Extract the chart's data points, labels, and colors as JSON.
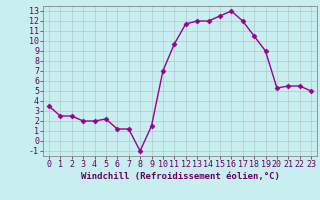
{
  "x": [
    0,
    1,
    2,
    3,
    4,
    5,
    6,
    7,
    8,
    9,
    10,
    11,
    12,
    13,
    14,
    15,
    16,
    17,
    18,
    19,
    20,
    21,
    22,
    23
  ],
  "y": [
    3.5,
    2.5,
    2.5,
    2.0,
    2.0,
    2.2,
    1.2,
    1.2,
    -1.0,
    1.5,
    7.0,
    9.7,
    11.7,
    12.0,
    12.0,
    12.5,
    13.0,
    12.0,
    10.5,
    9.0,
    5.3,
    5.5,
    5.5,
    5.0
  ],
  "line_color": "#990099",
  "marker": "D",
  "markersize": 2.5,
  "bg_color": "#c8eef0",
  "grid_color": "#b0c8c8",
  "xlim": [
    -0.5,
    23.5
  ],
  "ylim": [
    -1.5,
    13.5
  ],
  "yticks": [
    -1,
    0,
    1,
    2,
    3,
    4,
    5,
    6,
    7,
    8,
    9,
    10,
    11,
    12,
    13
  ],
  "xticks": [
    0,
    1,
    2,
    3,
    4,
    5,
    6,
    7,
    8,
    9,
    10,
    11,
    12,
    13,
    14,
    15,
    16,
    17,
    18,
    19,
    20,
    21,
    22,
    23
  ],
  "tick_color": "#660066",
  "label_color": "#660066",
  "spine_color": "#888888",
  "xlabel": "Windchill (Refroidissement éolien,°C)",
  "xlabel_fontsize": 6.5,
  "tick_fontsize": 6.0,
  "linewidth": 1.0
}
